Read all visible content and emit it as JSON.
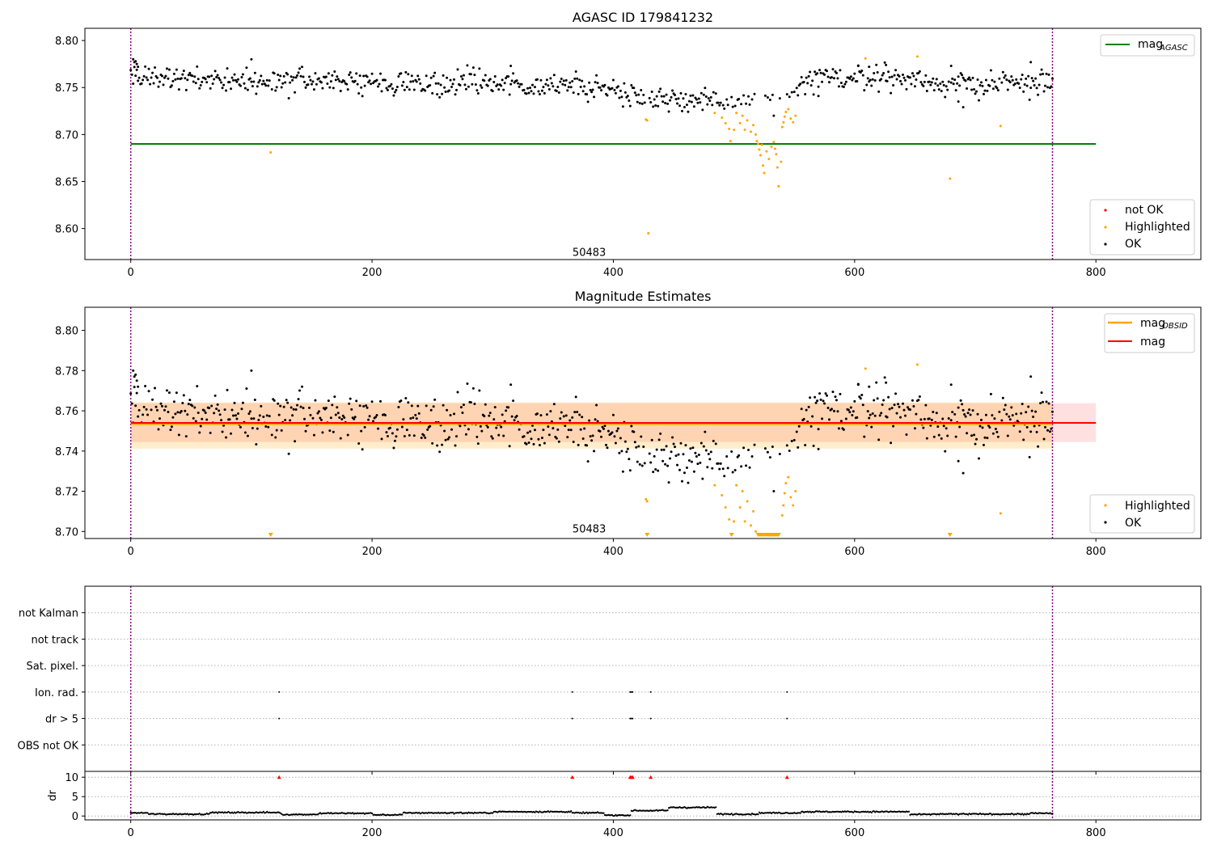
{
  "colors": {
    "ok": "#000000",
    "highlighted": "#ffa500",
    "not_ok": "#ff0000",
    "mag_agasc": "#008000",
    "mag_obsid": "#ffa500",
    "mag": "#ff0000",
    "obs_boundary": "#800080"
  },
  "chart_data": [
    {
      "type": "scatter",
      "title": "AGASC ID 179841232",
      "x_ticks": [
        0,
        200,
        400,
        600,
        800
      ],
      "y_ticks": [
        "8.60",
        "8.65",
        "8.70",
        "8.75",
        "8.80"
      ],
      "xlim": [
        -38,
        887
      ],
      "ylim": [
        8.567,
        8.813
      ],
      "obs_boundaries": [
        0,
        764
      ],
      "obsid_label": {
        "x": 380,
        "y": 8.575,
        "text": "50483"
      },
      "reference_line": {
        "name": "mag_AGASC",
        "y": 8.69,
        "x": [
          0,
          800
        ]
      },
      "legend_lines": [
        {
          "label": "mag",
          "sub": "AGASC",
          "key": "mag_agasc"
        }
      ],
      "legend_points": [
        {
          "label": "not OK",
          "key": "not_ok"
        },
        {
          "label": "Highlighted",
          "key": "highlighted"
        },
        {
          "label": "OK",
          "key": "ok"
        }
      ],
      "highlighted_points": [
        [
          116,
          8.681
        ],
        [
          427,
          8.716
        ],
        [
          428,
          8.715
        ],
        [
          429,
          8.595
        ],
        [
          484,
          8.723
        ],
        [
          490,
          8.718
        ],
        [
          493,
          8.712
        ],
        [
          496,
          8.706
        ],
        [
          497,
          8.693
        ],
        [
          500,
          8.705
        ],
        [
          502,
          8.723
        ],
        [
          505,
          8.712
        ],
        [
          507,
          8.72
        ],
        [
          509,
          8.705
        ],
        [
          511,
          8.715
        ],
        [
          514,
          8.703
        ],
        [
          516,
          8.71
        ],
        [
          518,
          8.7
        ],
        [
          519,
          8.693
        ],
        [
          520,
          8.69
        ],
        [
          521,
          8.684
        ],
        [
          522,
          8.678
        ],
        [
          523,
          8.689
        ],
        [
          524,
          8.667
        ],
        [
          525,
          8.659
        ],
        [
          527,
          8.682
        ],
        [
          529,
          8.674
        ],
        [
          531,
          8.687
        ],
        [
          533,
          8.692
        ],
        [
          534,
          8.685
        ],
        [
          535,
          8.679
        ],
        [
          536,
          8.665
        ],
        [
          537,
          8.645
        ],
        [
          539,
          8.671
        ],
        [
          540,
          8.708
        ],
        [
          541,
          8.713
        ],
        [
          542,
          8.719
        ],
        [
          543,
          8.724
        ],
        [
          545,
          8.727
        ],
        [
          547,
          8.717
        ],
        [
          549,
          8.713
        ],
        [
          551,
          8.72
        ],
        [
          609,
          8.781
        ],
        [
          652,
          8.783
        ],
        [
          679,
          8.653
        ],
        [
          721,
          8.709
        ]
      ],
      "ok_profile": [
        [
          0,
          8.762
        ],
        [
          60,
          8.759
        ],
        [
          120,
          8.757
        ],
        [
          200,
          8.755
        ],
        [
          300,
          8.754
        ],
        [
          380,
          8.751
        ],
        [
          400,
          8.748
        ],
        [
          420,
          8.742
        ],
        [
          440,
          8.739
        ],
        [
          460,
          8.737
        ],
        [
          480,
          8.734
        ],
        [
          505,
          8.735
        ],
        [
          520,
          8.74
        ],
        [
          535,
          8.735
        ],
        [
          555,
          8.75
        ],
        [
          570,
          8.759
        ],
        [
          620,
          8.762
        ],
        [
          700,
          8.752
        ],
        [
          764,
          8.756
        ]
      ],
      "ok_outliers": [
        [
          2,
          8.78
        ],
        [
          3,
          8.777
        ],
        [
          4,
          8.778
        ],
        [
          5,
          8.775
        ],
        [
          6,
          8.772
        ],
        [
          100,
          8.78
        ],
        [
          315,
          8.773
        ],
        [
          603,
          8.773
        ],
        [
          612,
          8.772
        ],
        [
          626,
          8.774
        ],
        [
          652,
          8.765
        ],
        [
          680,
          8.773
        ],
        [
          686,
          8.735
        ],
        [
          690,
          8.729
        ],
        [
          746,
          8.777
        ],
        [
          570,
          8.741
        ],
        [
          533,
          8.72
        ]
      ]
    },
    {
      "type": "scatter",
      "title": "Magnitude Estimates",
      "x_ticks": [
        0,
        200,
        400,
        600,
        800
      ],
      "y_ticks": [
        "8.70",
        "8.72",
        "8.74",
        "8.76",
        "8.78",
        "8.80"
      ],
      "xlim": [
        -38,
        887
      ],
      "ylim": [
        8.6965,
        8.8115
      ],
      "obs_boundaries": [
        0,
        764
      ],
      "obsid_label": {
        "x": 380,
        "y": 8.7015,
        "text": "50483"
      },
      "mag_obsid": {
        "y": 8.7535,
        "x": [
          0,
          764
        ],
        "band": [
          8.7412,
          8.7642
        ]
      },
      "mag": {
        "y": 8.754,
        "x": [
          0,
          800
        ],
        "band": [
          8.7445,
          8.7638
        ]
      },
      "legend_lines": [
        {
          "label": "mag",
          "sub": "OBSID",
          "key": "mag_obsid"
        },
        {
          "label": "mag",
          "sub": "",
          "key": "mag"
        }
      ],
      "legend_points": [
        {
          "label": "Highlighted",
          "key": "highlighted"
        },
        {
          "label": "OK",
          "key": "ok"
        }
      ],
      "offscale_markers": [
        116,
        428,
        498,
        520,
        521,
        522,
        523,
        524,
        525,
        526,
        527,
        528,
        529,
        530,
        531,
        532,
        533,
        534,
        535,
        536,
        537,
        679
      ]
    },
    {
      "type": "scatter",
      "title": "",
      "x_ticks": [
        0,
        200,
        400,
        600,
        800
      ],
      "xlim": [
        -38,
        887
      ],
      "categories": [
        "not Kalman",
        "not track",
        "Sat. pixel.",
        "Ion. rad.",
        "dr > 5",
        "OBS not OK"
      ],
      "flags": [
        {
          "category": "Ion. rad.",
          "x": [
            123,
            366,
            414,
            415,
            416,
            431,
            544
          ]
        },
        {
          "category": "dr > 5",
          "x": [
            123,
            366,
            414,
            415,
            416,
            431,
            544
          ]
        }
      ],
      "obs_boundaries": [
        0,
        764
      ]
    },
    {
      "type": "scatter",
      "title": "",
      "ylabel": "dr",
      "x_ticks": [
        0,
        200,
        400,
        600,
        800
      ],
      "y_ticks": [
        "0",
        "5",
        "10"
      ],
      "xlim": [
        -38,
        887
      ],
      "ylim": [
        -1,
        11.5
      ],
      "dr_clipped": [
        123,
        366,
        414,
        415,
        416,
        431,
        544
      ],
      "dr_segments": [
        [
          0,
          14,
          0.8
        ],
        [
          15,
          65,
          0.5
        ],
        [
          66,
          124,
          0.9
        ],
        [
          125,
          155,
          0.4
        ],
        [
          156,
          200,
          0.7
        ],
        [
          201,
          225,
          0.3
        ],
        [
          226,
          300,
          0.8
        ],
        [
          301,
          365,
          1.1
        ],
        [
          366,
          392,
          0.8
        ],
        [
          393,
          414,
          0.2
        ],
        [
          415,
          445,
          1.4
        ],
        [
          446,
          485,
          2.2
        ],
        [
          486,
          520,
          0.5
        ],
        [
          521,
          555,
          0.8
        ],
        [
          556,
          645,
          1.1
        ],
        [
          646,
          664,
          0.4
        ],
        [
          665,
          745,
          0.5
        ],
        [
          746,
          764,
          0.7
        ]
      ],
      "obs_boundaries": [
        0,
        764
      ]
    }
  ]
}
